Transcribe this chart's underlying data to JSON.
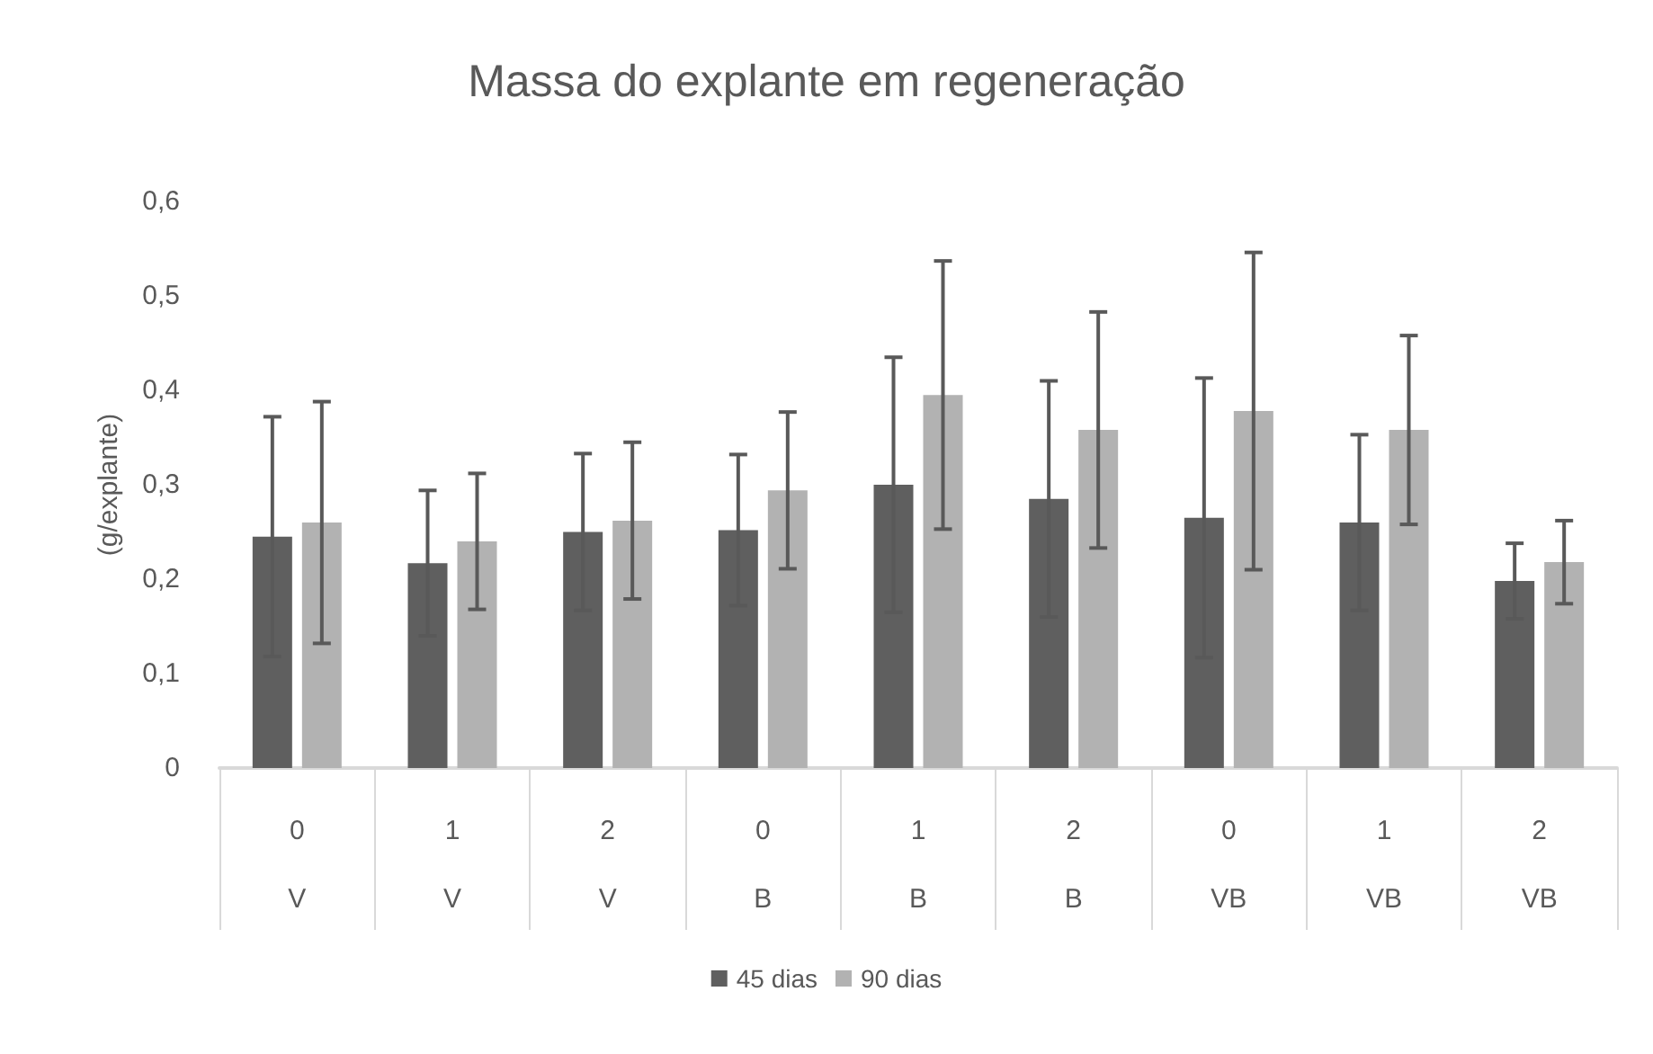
{
  "chart_data": {
    "type": "bar",
    "title": "Massa do explante em regeneração",
    "ylabel": "(g/explante)",
    "categories": [
      "0\nV",
      "1\nV",
      "2\nV",
      "0\nB",
      "1\nB",
      "2\nB",
      "0\nVB",
      "1\nVB",
      "2\nVB"
    ],
    "series": [
      {
        "name": "45 dias",
        "color": "#5f5f5f",
        "values": [
          0.245,
          0.217,
          0.25,
          0.252,
          0.3,
          0.285,
          0.265,
          0.26,
          0.198
        ],
        "errors": [
          0.127,
          0.077,
          0.083,
          0.08,
          0.135,
          0.125,
          0.148,
          0.093,
          0.04
        ]
      },
      {
        "name": "90 dias",
        "color": "#b2b2b2",
        "values": [
          0.26,
          0.24,
          0.262,
          0.294,
          0.395,
          0.358,
          0.378,
          0.358,
          0.218
        ],
        "errors": [
          0.128,
          0.072,
          0.083,
          0.083,
          0.142,
          0.125,
          0.168,
          0.1,
          0.044
        ]
      }
    ],
    "ylim": [
      0,
      0.6
    ],
    "yticks": [
      {
        "value": 0,
        "label": "0"
      },
      {
        "value": 0.1,
        "label": "0,1"
      },
      {
        "value": 0.2,
        "label": "0,2"
      },
      {
        "value": 0.3,
        "label": "0,3"
      },
      {
        "value": 0.4,
        "label": "0,4"
      },
      {
        "value": 0.5,
        "label": "0,5"
      },
      {
        "value": 0.6,
        "label": "0,6"
      }
    ],
    "grid": false,
    "legend": "bottom"
  }
}
